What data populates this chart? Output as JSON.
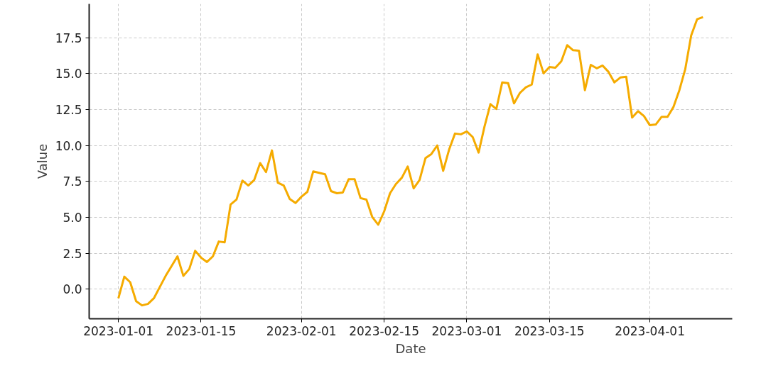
{
  "chart_data": {
    "type": "line",
    "xlabel": "Date",
    "ylabel": "Value",
    "x": [
      "2023-01-01",
      "2023-01-02",
      "2023-01-03",
      "2023-01-04",
      "2023-01-05",
      "2023-01-06",
      "2023-01-07",
      "2023-01-08",
      "2023-01-09",
      "2023-01-10",
      "2023-01-11",
      "2023-01-12",
      "2023-01-13",
      "2023-01-14",
      "2023-01-15",
      "2023-01-16",
      "2023-01-17",
      "2023-01-18",
      "2023-01-19",
      "2023-01-20",
      "2023-01-21",
      "2023-01-22",
      "2023-01-23",
      "2023-01-24",
      "2023-01-25",
      "2023-01-26",
      "2023-01-27",
      "2023-01-28",
      "2023-01-29",
      "2023-01-30",
      "2023-01-31",
      "2023-02-01",
      "2023-02-02",
      "2023-02-03",
      "2023-02-04",
      "2023-02-05",
      "2023-02-06",
      "2023-02-07",
      "2023-02-08",
      "2023-02-09",
      "2023-02-10",
      "2023-02-11",
      "2023-02-12",
      "2023-02-13",
      "2023-02-14",
      "2023-02-15",
      "2023-02-16",
      "2023-02-17",
      "2023-02-18",
      "2023-02-19",
      "2023-02-20",
      "2023-02-21",
      "2023-02-22",
      "2023-02-23",
      "2023-02-24",
      "2023-02-25",
      "2023-02-26",
      "2023-02-27",
      "2023-02-28",
      "2023-03-01",
      "2023-03-02",
      "2023-03-03",
      "2023-03-04",
      "2023-03-05",
      "2023-03-06",
      "2023-03-07",
      "2023-03-08",
      "2023-03-09",
      "2023-03-10",
      "2023-03-11",
      "2023-03-12",
      "2023-03-13",
      "2023-03-14",
      "2023-03-15",
      "2023-03-16",
      "2023-03-17",
      "2023-03-18",
      "2023-03-19",
      "2023-03-20",
      "2023-03-21",
      "2023-03-22",
      "2023-03-23",
      "2023-03-24",
      "2023-03-25",
      "2023-03-26",
      "2023-03-27",
      "2023-03-28",
      "2023-03-29",
      "2023-03-30",
      "2023-03-31",
      "2023-04-01",
      "2023-04-02",
      "2023-04-03",
      "2023-04-04",
      "2023-04-05",
      "2023-04-06",
      "2023-04-07",
      "2023-04-08",
      "2023-04-09",
      "2023-04-10"
    ],
    "series": [
      {
        "color": "#f5ab00",
        "values": [
          -0.63,
          0.88,
          0.49,
          -0.83,
          -1.12,
          -1.02,
          -0.63,
          0.15,
          0.93,
          1.61,
          2.29,
          0.93,
          1.41,
          2.68,
          2.2,
          1.9,
          2.29,
          3.32,
          3.27,
          5.9,
          6.24,
          7.56,
          7.22,
          7.6,
          8.78,
          8.15,
          9.66,
          7.41,
          7.22,
          6.29,
          6.0,
          6.44,
          6.78,
          8.2,
          8.1,
          8.0,
          6.83,
          6.68,
          6.73,
          7.66,
          7.66,
          6.34,
          6.24,
          5.02,
          4.49,
          5.41,
          6.68,
          7.32,
          7.76,
          8.54,
          7.02,
          7.6,
          9.12,
          9.41,
          10.0,
          8.24,
          9.71,
          10.83,
          10.78,
          10.98,
          10.59,
          9.51,
          11.32,
          12.88,
          12.54,
          14.39,
          14.34,
          12.93,
          13.66,
          14.05,
          14.24,
          16.34,
          15.02,
          15.46,
          15.41,
          15.85,
          16.98,
          16.63,
          16.59,
          13.85,
          15.61,
          15.37,
          15.56,
          15.12,
          14.39,
          14.73,
          14.78,
          11.95,
          12.39,
          12.05,
          11.41,
          11.46,
          12.0,
          12.0,
          12.68,
          13.85,
          15.32,
          17.66,
          18.78,
          18.93
        ]
      }
    ],
    "xlim": [
      "2022-12-27T01:12",
      "2023-04-14T22:48"
    ],
    "xticks": [
      "2023-01-01",
      "2023-01-15",
      "2023-02-01",
      "2023-02-15",
      "2023-03-01",
      "2023-03-15",
      "2023-04-01"
    ],
    "ylim": [
      -2.05,
      19.85
    ],
    "yticks": [
      {
        "value": 0,
        "label": "0.0"
      },
      {
        "value": 2.5,
        "label": "2.5"
      },
      {
        "value": 5,
        "label": "5.0"
      },
      {
        "value": 7.5,
        "label": "7.5"
      },
      {
        "value": 10,
        "label": "10.0"
      },
      {
        "value": 12.5,
        "label": "12.5"
      },
      {
        "value": 15,
        "label": "15.0"
      },
      {
        "value": 17.5,
        "label": "17.5"
      }
    ],
    "grid": true,
    "line_style": "solid"
  }
}
